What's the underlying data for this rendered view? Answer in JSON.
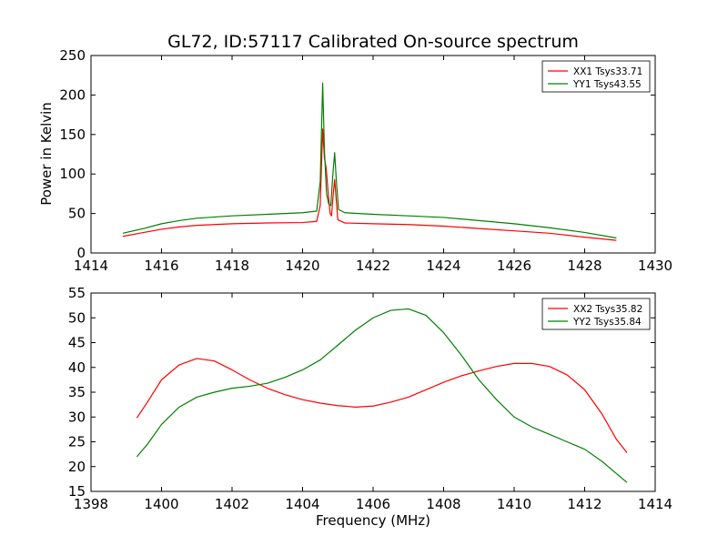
{
  "chart_data": [
    {
      "type": "line",
      "title": "GL72, ID:57117 Calibrated On-source spectrum",
      "xlabel": "",
      "ylabel": "Power in Kelvin",
      "xlim": [
        1414,
        1430
      ],
      "ylim": [
        0,
        250
      ],
      "xticks": [
        "1414",
        "1416",
        "1418",
        "1420",
        "1422",
        "1424",
        "1426",
        "1428",
        "1430"
      ],
      "yticks": [
        "0",
        "50",
        "100",
        "150",
        "200",
        "250"
      ],
      "legend_position": "top-right",
      "series": [
        {
          "name": "XX1 Tsys33.71",
          "color": "#ff0000",
          "points": [
            [
              1414.9,
              21
            ],
            [
              1415.5,
              26
            ],
            [
              1416,
              30
            ],
            [
              1416.5,
              33
            ],
            [
              1417,
              35
            ],
            [
              1418,
              37
            ],
            [
              1419,
              38
            ],
            [
              1420,
              38.5
            ],
            [
              1420.4,
              40
            ],
            [
              1420.5,
              60
            ],
            [
              1420.57,
              157
            ],
            [
              1420.62,
              120
            ],
            [
              1420.67,
              107
            ],
            [
              1420.72,
              80
            ],
            [
              1420.78,
              50
            ],
            [
              1420.82,
              47
            ],
            [
              1420.87,
              75
            ],
            [
              1420.91,
              93
            ],
            [
              1420.95,
              70
            ],
            [
              1421.0,
              42
            ],
            [
              1421.2,
              38
            ],
            [
              1422,
              37
            ],
            [
              1423,
              36
            ],
            [
              1424,
              34
            ],
            [
              1425,
              31
            ],
            [
              1426,
              28
            ],
            [
              1427,
              25
            ],
            [
              1428,
              20
            ],
            [
              1428.9,
              16
            ]
          ]
        },
        {
          "name": "YY1 Tsys43.55",
          "color": "#008000",
          "points": [
            [
              1414.9,
              25
            ],
            [
              1415.5,
              31
            ],
            [
              1416,
              37
            ],
            [
              1416.5,
              41
            ],
            [
              1417,
              44
            ],
            [
              1418,
              47
            ],
            [
              1419,
              49
            ],
            [
              1420,
              51
            ],
            [
              1420.4,
              53
            ],
            [
              1420.5,
              90
            ],
            [
              1420.57,
              215
            ],
            [
              1420.62,
              130
            ],
            [
              1420.68,
              75
            ],
            [
              1420.74,
              62
            ],
            [
              1420.8,
              60
            ],
            [
              1420.86,
              100
            ],
            [
              1420.91,
              127
            ],
            [
              1420.96,
              90
            ],
            [
              1421.02,
              55
            ],
            [
              1421.2,
              51
            ],
            [
              1422,
              49
            ],
            [
              1423,
              47
            ],
            [
              1424,
              45
            ],
            [
              1425,
              41
            ],
            [
              1426,
              37
            ],
            [
              1427,
              32
            ],
            [
              1428,
              26
            ],
            [
              1428.9,
              19
            ]
          ]
        }
      ]
    },
    {
      "type": "line",
      "title": "",
      "xlabel": "Frequency (MHz)",
      "ylabel": "",
      "xlim": [
        1398,
        1414
      ],
      "ylim": [
        15,
        55
      ],
      "xticks": [
        "1398",
        "1400",
        "1402",
        "1404",
        "1406",
        "1408",
        "1410",
        "1412",
        "1414"
      ],
      "yticks": [
        "15",
        "20",
        "25",
        "30",
        "35",
        "40",
        "45",
        "50",
        "55"
      ],
      "legend_position": "top-right",
      "series": [
        {
          "name": "XX2 Tsys35.82",
          "color": "#ff0000",
          "points": [
            [
              1399.3,
              29.8
            ],
            [
              1399.6,
              33
            ],
            [
              1400,
              37.5
            ],
            [
              1400.5,
              40.5
            ],
            [
              1401,
              41.8
            ],
            [
              1401.5,
              41.3
            ],
            [
              1402,
              39.5
            ],
            [
              1402.5,
              37.5
            ],
            [
              1403,
              35.8
            ],
            [
              1403.5,
              34.5
            ],
            [
              1404,
              33.5
            ],
            [
              1404.5,
              32.8
            ],
            [
              1405,
              32.3
            ],
            [
              1405.5,
              32
            ],
            [
              1406,
              32.2
            ],
            [
              1406.5,
              33
            ],
            [
              1407,
              34
            ],
            [
              1407.5,
              35.5
            ],
            [
              1408,
              37
            ],
            [
              1408.5,
              38.3
            ],
            [
              1409,
              39.3
            ],
            [
              1409.5,
              40.2
            ],
            [
              1410,
              40.8
            ],
            [
              1410.5,
              40.8
            ],
            [
              1411,
              40.2
            ],
            [
              1411.5,
              38.5
            ],
            [
              1412,
              35.5
            ],
            [
              1412.5,
              30.5
            ],
            [
              1412.9,
              25.5
            ],
            [
              1413.2,
              22.8
            ]
          ]
        },
        {
          "name": "YY2 Tsys35.84",
          "color": "#008000",
          "points": [
            [
              1399.3,
              22
            ],
            [
              1399.6,
              24.5
            ],
            [
              1400,
              28.5
            ],
            [
              1400.5,
              32
            ],
            [
              1401,
              34
            ],
            [
              1401.5,
              35
            ],
            [
              1402,
              35.8
            ],
            [
              1402.5,
              36.2
            ],
            [
              1403,
              36.8
            ],
            [
              1403.5,
              38
            ],
            [
              1404,
              39.5
            ],
            [
              1404.5,
              41.5
            ],
            [
              1405,
              44.5
            ],
            [
              1405.5,
              47.5
            ],
            [
              1406,
              50
            ],
            [
              1406.5,
              51.5
            ],
            [
              1407,
              51.8
            ],
            [
              1407.5,
              50.5
            ],
            [
              1408,
              47
            ],
            [
              1408.5,
              42.5
            ],
            [
              1409,
              37.5
            ],
            [
              1409.5,
              33.5
            ],
            [
              1410,
              30
            ],
            [
              1410.5,
              28
            ],
            [
              1411,
              26.5
            ],
            [
              1411.5,
              25
            ],
            [
              1412,
              23.5
            ],
            [
              1412.5,
              21
            ],
            [
              1413,
              18
            ],
            [
              1413.2,
              16.8
            ]
          ]
        }
      ]
    }
  ]
}
